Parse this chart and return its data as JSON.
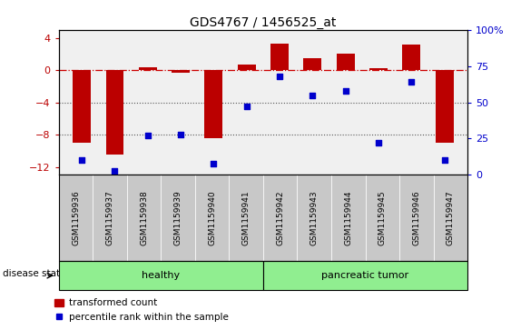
{
  "title": "GDS4767 / 1456525_at",
  "samples": [
    "GSM1159936",
    "GSM1159937",
    "GSM1159938",
    "GSM1159939",
    "GSM1159940",
    "GSM1159941",
    "GSM1159942",
    "GSM1159943",
    "GSM1159944",
    "GSM1159945",
    "GSM1159946",
    "GSM1159947"
  ],
  "transformed_count": [
    -9.0,
    -10.5,
    0.3,
    -0.3,
    -8.5,
    0.7,
    3.3,
    1.5,
    2.0,
    0.2,
    3.2,
    -9.0
  ],
  "percentile_rank": [
    10,
    3,
    27,
    28,
    8,
    47,
    68,
    55,
    58,
    22,
    64,
    10
  ],
  "healthy_count": 6,
  "tumor_count": 6,
  "disease_state_label": "disease state",
  "healthy_label": "healthy",
  "tumor_label": "pancreatic tumor",
  "legend_bar_label": "transformed count",
  "legend_dot_label": "percentile rank within the sample",
  "bar_color": "#BB0000",
  "dot_color": "#0000CC",
  "dashed_line_color": "#CC0000",
  "grid_color": "#555555",
  "ylim_left": [
    -13,
    5
  ],
  "ylim_right": [
    0,
    100
  ],
  "yticks_left": [
    4,
    0,
    -4,
    -8,
    -12
  ],
  "yticks_right": [
    100,
    75,
    50,
    25,
    0
  ],
  "healthy_color": "#90EE90",
  "tumor_color": "#90EE90",
  "plot_bg": "#F0F0F0",
  "tick_bg": "#C8C8C8"
}
